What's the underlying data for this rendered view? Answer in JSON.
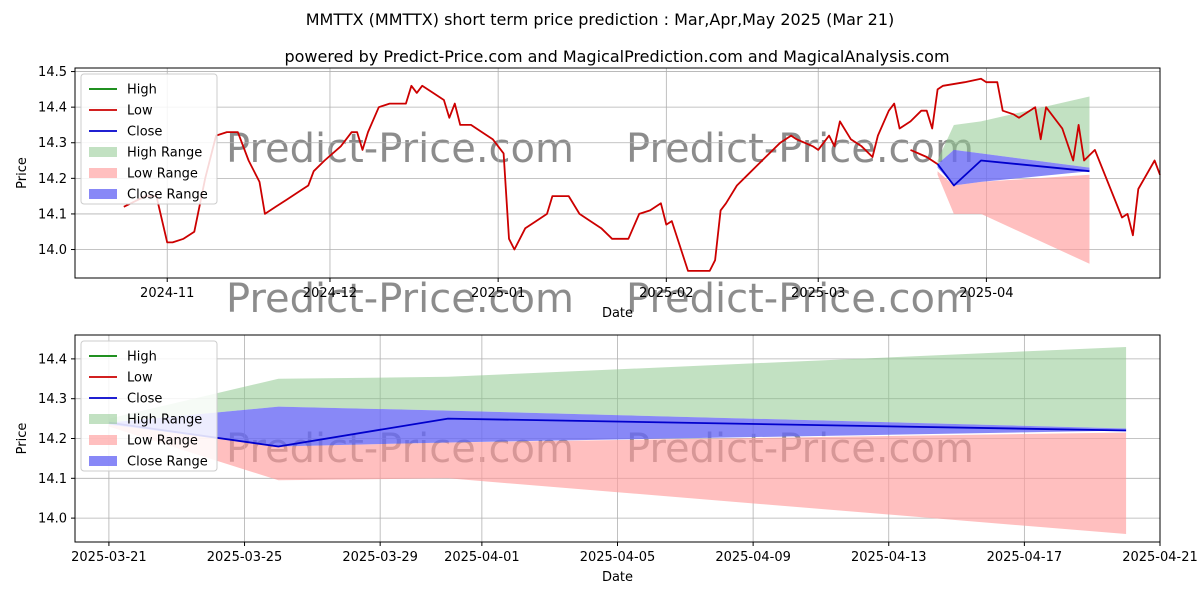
{
  "title": "MMTTX (MMTTX) short term price prediction : Mar,Apr,May 2025 (Mar 21)",
  "subtitle": "powered by Predict-Price.com and MagicalPrediction.com and MagicalAnalysis.com",
  "watermark": "Predict-Price.com",
  "colors": {
    "high": "#008000",
    "low": "#cc0000",
    "close": "#0000cc",
    "high_range": "#8fc98f",
    "low_range": "#ff9c9c",
    "close_range": "#6a6af5",
    "grid": "#b0b0b0"
  },
  "chart_data": [
    {
      "type": "line",
      "xlabel": "Date",
      "ylabel": "Price",
      "xlim": [
        "2024-10-15",
        "2025-05-03"
      ],
      "ylim": [
        13.92,
        14.51
      ],
      "x_ticks": [
        "2024-11-01",
        "2024-12-01",
        "2025-01-01",
        "2025-02-01",
        "2025-03-01",
        "2025-04-01"
      ],
      "x_tick_labels": [
        "2024-11",
        "2024-12",
        "2025-01",
        "2025-02",
        "2025-03",
        "2025-04"
      ],
      "y_ticks": [
        14.0,
        14.1,
        14.2,
        14.3,
        14.4,
        14.5
      ],
      "y_tick_labels": [
        "14.0",
        "14.1",
        "14.2",
        "14.3",
        "14.4",
        "14.5"
      ],
      "grid": true,
      "legend_position": "top-left",
      "legend": [
        "High",
        "Low",
        "Close",
        "High Range",
        "Low Range",
        "Close Range"
      ],
      "series": [
        {
          "name": "Low",
          "points": [
            [
              "2024-10-24",
              14.12
            ],
            [
              "2024-10-28",
              14.15
            ],
            [
              "2024-10-30",
              14.15
            ],
            [
              "2024-11-01",
              14.02
            ],
            [
              "2024-11-02",
              14.02
            ],
            [
              "2024-11-04",
              14.03
            ],
            [
              "2024-11-06",
              14.05
            ],
            [
              "2024-11-08",
              14.2
            ],
            [
              "2024-11-10",
              14.32
            ],
            [
              "2024-11-12",
              14.33
            ],
            [
              "2024-11-14",
              14.33
            ],
            [
              "2024-11-16",
              14.25
            ],
            [
              "2024-11-18",
              14.19
            ],
            [
              "2024-11-19",
              14.1
            ],
            [
              "2024-11-21",
              14.12
            ],
            [
              "2024-11-23",
              14.14
            ],
            [
              "2024-11-25",
              14.16
            ],
            [
              "2024-11-26",
              14.17
            ],
            [
              "2024-11-27",
              14.18
            ],
            [
              "2024-11-28",
              14.22
            ],
            [
              "2024-11-30",
              14.25
            ],
            [
              "2024-12-03",
              14.29
            ],
            [
              "2024-12-05",
              14.33
            ],
            [
              "2024-12-06",
              14.33
            ],
            [
              "2024-12-07",
              14.28
            ],
            [
              "2024-12-08",
              14.33
            ],
            [
              "2024-12-10",
              14.4
            ],
            [
              "2024-12-12",
              14.41
            ],
            [
              "2024-12-15",
              14.41
            ],
            [
              "2024-12-16",
              14.46
            ],
            [
              "2024-12-17",
              14.44
            ],
            [
              "2024-12-18",
              14.46
            ],
            [
              "2024-12-20",
              14.44
            ],
            [
              "2024-12-22",
              14.42
            ],
            [
              "2024-12-23",
              14.37
            ],
            [
              "2024-12-24",
              14.41
            ],
            [
              "2024-12-25",
              14.35
            ],
            [
              "2024-12-27",
              14.35
            ],
            [
              "2024-12-29",
              14.33
            ],
            [
              "2024-12-31",
              14.31
            ],
            [
              "2025-01-02",
              14.27
            ],
            [
              "2025-01-03",
              14.03
            ],
            [
              "2025-01-04",
              14.0
            ],
            [
              "2025-01-06",
              14.06
            ],
            [
              "2025-01-08",
              14.08
            ],
            [
              "2025-01-10",
              14.1
            ],
            [
              "2025-01-11",
              14.15
            ],
            [
              "2025-01-14",
              14.15
            ],
            [
              "2025-01-16",
              14.1
            ],
            [
              "2025-01-18",
              14.08
            ],
            [
              "2025-01-20",
              14.06
            ],
            [
              "2025-01-22",
              14.03
            ],
            [
              "2025-01-25",
              14.03
            ],
            [
              "2025-01-27",
              14.1
            ],
            [
              "2025-01-29",
              14.11
            ],
            [
              "2025-01-31",
              14.13
            ],
            [
              "2025-02-01",
              14.07
            ],
            [
              "2025-02-02",
              14.08
            ],
            [
              "2025-02-05",
              13.94
            ],
            [
              "2025-02-07",
              13.94
            ],
            [
              "2025-02-09",
              13.94
            ],
            [
              "2025-02-10",
              13.97
            ],
            [
              "2025-02-11",
              14.11
            ],
            [
              "2025-02-12",
              14.13
            ],
            [
              "2025-02-14",
              14.18
            ],
            [
              "2025-02-16",
              14.21
            ],
            [
              "2025-02-18",
              14.24
            ],
            [
              "2025-02-20",
              14.27
            ],
            [
              "2025-02-22",
              14.3
            ],
            [
              "2025-02-24",
              14.32
            ],
            [
              "2025-02-25",
              14.31
            ],
            [
              "2025-02-28",
              14.29
            ],
            [
              "2025-03-01",
              14.28
            ],
            [
              "2025-03-03",
              14.32
            ],
            [
              "2025-03-04",
              14.29
            ],
            [
              "2025-03-05",
              14.36
            ],
            [
              "2025-03-07",
              14.31
            ],
            [
              "2025-03-09",
              14.29
            ],
            [
              "2025-03-11",
              14.26
            ],
            [
              "2025-03-12",
              14.32
            ],
            [
              "2025-03-14",
              14.39
            ],
            [
              "2025-03-15",
              14.41
            ],
            [
              "2025-03-16",
              14.34
            ],
            [
              "2025-03-18",
              14.36
            ],
            [
              "2025-03-20",
              14.39
            ],
            [
              "2025-03-21",
              14.39
            ],
            [
              "2025-03-22",
              14.34
            ],
            [
              "2025-03-23",
              14.45
            ],
            [
              "2025-03-24",
              14.46
            ],
            [
              "2025-03-28",
              14.47
            ],
            [
              "2025-03-31",
              14.48
            ],
            [
              "2025-04-01",
              14.47
            ],
            [
              "2025-04-03",
              14.47
            ],
            [
              "2025-04-04",
              14.39
            ],
            [
              "2025-04-06",
              14.38
            ],
            [
              "2025-04-07",
              14.37
            ],
            [
              "2025-04-09",
              14.39
            ],
            [
              "2025-04-10",
              14.4
            ],
            [
              "2025-04-11",
              14.31
            ],
            [
              "2025-04-12",
              14.4
            ],
            [
              "2025-04-15",
              14.34
            ],
            [
              "2025-04-17",
              14.25
            ],
            [
              "2025-04-18",
              14.35
            ],
            [
              "2025-04-19",
              14.25
            ],
            [
              "2025-04-21",
              14.28
            ],
            [
              "2025-04-26",
              14.09
            ],
            [
              "2025-04-27",
              14.1
            ],
            [
              "2025-04-28",
              14.04
            ],
            [
              "2025-04-29",
              14.17
            ],
            [
              "2025-05-02",
              14.25
            ],
            [
              "2025-05-03",
              14.21
            ]
          ]
        },
        {
          "name": "Low",
          "points": [
            [
              "2025-03-18",
              14.28
            ],
            [
              "2025-03-21",
              14.26
            ],
            [
              "2025-03-23",
              14.24
            ]
          ]
        },
        {
          "name": "Close",
          "points": [
            [
              "2025-03-23",
              14.24
            ],
            [
              "2025-03-26",
              14.18
            ],
            [
              "2025-03-31",
              14.25
            ],
            [
              "2025-04-20",
              14.22
            ]
          ]
        },
        {
          "name": "High Range",
          "upper": [
            [
              "2025-03-23",
              14.25
            ],
            [
              "2025-03-26",
              14.35
            ],
            [
              "2025-03-31",
              14.36
            ],
            [
              "2025-04-20",
              14.43
            ]
          ],
          "lower": [
            [
              "2025-03-23",
              14.24
            ],
            [
              "2025-03-26",
              14.28
            ],
            [
              "2025-03-31",
              14.27
            ],
            [
              "2025-04-20",
              14.23
            ]
          ]
        },
        {
          "name": "Low Range",
          "upper": [
            [
              "2025-03-23",
              14.22
            ],
            [
              "2025-03-26",
              14.18
            ],
            [
              "2025-03-31",
              14.19
            ],
            [
              "2025-04-20",
              14.21
            ]
          ],
          "lower": [
            [
              "2025-03-23",
              14.21
            ],
            [
              "2025-03-26",
              14.1
            ],
            [
              "2025-03-31",
              14.1
            ],
            [
              "2025-04-20",
              13.96
            ]
          ]
        },
        {
          "name": "Close Range",
          "upper": [
            [
              "2025-03-23",
              14.24
            ],
            [
              "2025-03-26",
              14.28
            ],
            [
              "2025-03-31",
              14.27
            ],
            [
              "2025-04-20",
              14.23
            ]
          ],
          "lower": [
            [
              "2025-03-23",
              14.23
            ],
            [
              "2025-03-26",
              14.18
            ],
            [
              "2025-03-31",
              14.19
            ],
            [
              "2025-04-20",
              14.22
            ]
          ]
        }
      ]
    },
    {
      "type": "line",
      "xlabel": "Date",
      "ylabel": "Price",
      "xlim": [
        "2025-03-20",
        "2025-04-21"
      ],
      "ylim": [
        13.94,
        14.46
      ],
      "x_ticks": [
        "2025-03-21",
        "2025-03-25",
        "2025-03-29",
        "2025-04-01",
        "2025-04-05",
        "2025-04-09",
        "2025-04-13",
        "2025-04-17",
        "2025-04-21"
      ],
      "x_tick_labels": [
        "2025-03-21",
        "2025-03-25",
        "2025-03-29",
        "2025-04-01",
        "2025-04-05",
        "2025-04-09",
        "2025-04-13",
        "2025-04-17",
        "2025-04-21"
      ],
      "y_ticks": [
        14.0,
        14.1,
        14.2,
        14.3,
        14.4
      ],
      "y_tick_labels": [
        "14.0",
        "14.1",
        "14.2",
        "14.3",
        "14.4"
      ],
      "grid": true,
      "legend_position": "top-left",
      "legend": [
        "High",
        "Low",
        "Close",
        "High Range",
        "Low Range",
        "Close Range"
      ],
      "series": [
        {
          "name": "Close",
          "points": [
            [
              "2025-03-21",
              14.24
            ],
            [
              "2025-03-26",
              14.18
            ],
            [
              "2025-03-31",
              14.25
            ],
            [
              "2025-04-20",
              14.22
            ]
          ]
        },
        {
          "name": "High Range",
          "upper": [
            [
              "2025-03-21",
              14.25
            ],
            [
              "2025-03-26",
              14.35
            ],
            [
              "2025-03-31",
              14.355
            ],
            [
              "2025-04-20",
              14.43
            ]
          ],
          "lower": [
            [
              "2025-03-21",
              14.24
            ],
            [
              "2025-03-26",
              14.28
            ],
            [
              "2025-03-31",
              14.27
            ],
            [
              "2025-04-20",
              14.225
            ]
          ]
        },
        {
          "name": "Low Range",
          "upper": [
            [
              "2025-03-21",
              14.235
            ],
            [
              "2025-03-26",
              14.18
            ],
            [
              "2025-03-31",
              14.19
            ],
            [
              "2025-04-20",
              14.215
            ]
          ],
          "lower": [
            [
              "2025-03-21",
              14.23
            ],
            [
              "2025-03-26",
              14.095
            ],
            [
              "2025-03-31",
              14.1
            ],
            [
              "2025-04-20",
              13.96
            ]
          ]
        },
        {
          "name": "Close Range",
          "upper": [
            [
              "2025-03-21",
              14.24
            ],
            [
              "2025-03-26",
              14.28
            ],
            [
              "2025-03-31",
              14.27
            ],
            [
              "2025-04-20",
              14.225
            ]
          ],
          "lower": [
            [
              "2025-03-21",
              14.235
            ],
            [
              "2025-03-26",
              14.18
            ],
            [
              "2025-03-31",
              14.19
            ],
            [
              "2025-04-20",
              14.22
            ]
          ]
        }
      ]
    }
  ]
}
